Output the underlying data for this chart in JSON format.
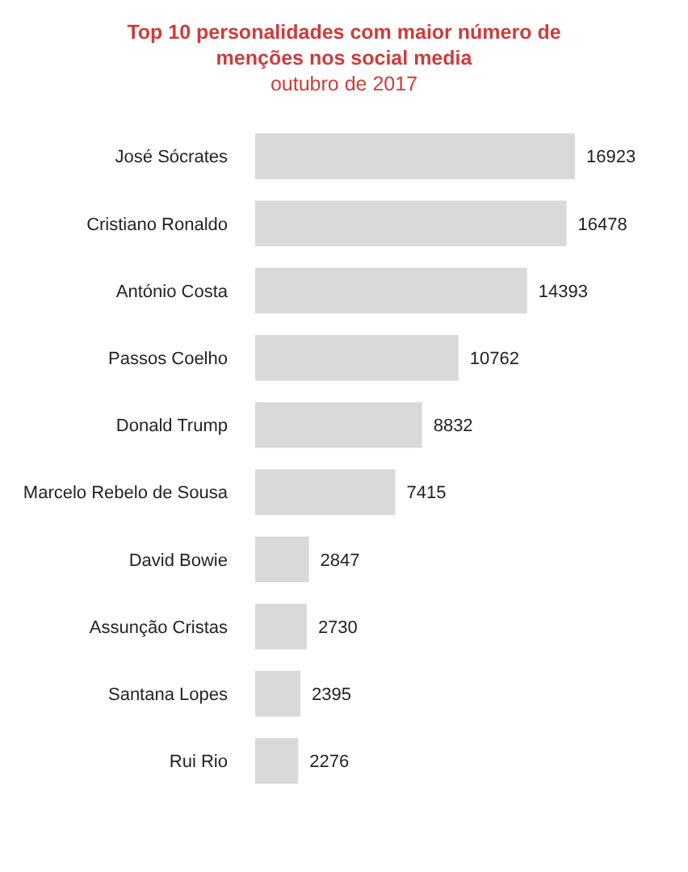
{
  "chart_data": {
    "type": "bar",
    "orientation": "horizontal",
    "title": "Top 10 personalidades com maior número de menções nos social media",
    "subtitle": "outubro de 2017",
    "categories": [
      "José Sócrates",
      "Cristiano Ronaldo",
      "António Costa",
      "Passos Coelho",
      "Donald Trump",
      "Marcelo Rebelo de Sousa",
      "David Bowie",
      "Assunção Cristas",
      "Santana Lopes",
      "Rui Rio"
    ],
    "values": [
      16923,
      16478,
      14393,
      10762,
      8832,
      7415,
      2847,
      2730,
      2395,
      2276
    ],
    "color": "#d9d9d9",
    "data_labels": true
  }
}
